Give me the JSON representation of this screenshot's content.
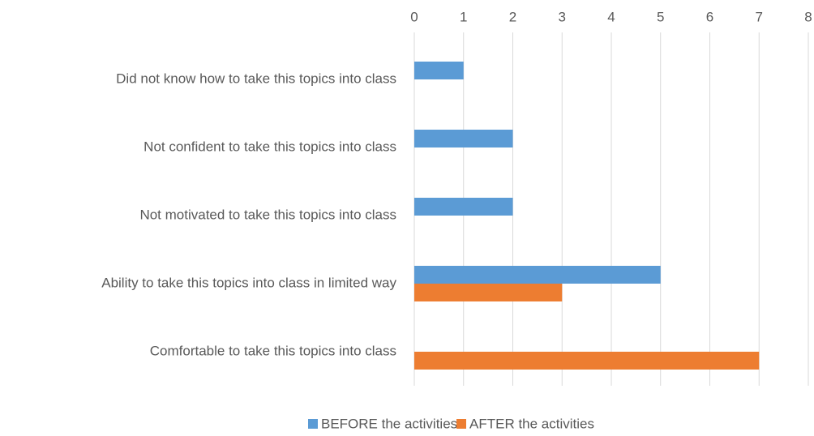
{
  "chart_data": {
    "type": "bar",
    "orientation": "horizontal",
    "categories": [
      "Did not know how to take this topics into class",
      "Not confident to take this topics into class",
      "Not motivated to take this topics into class",
      "Ability to take this topics into class in limited way",
      "Comfortable to take this topics into class"
    ],
    "series": [
      {
        "name": "BEFORE the activities",
        "color": "#5b9bd5",
        "values": [
          1,
          2,
          2,
          5,
          0
        ]
      },
      {
        "name": "AFTER the activities",
        "color": "#ed7d31",
        "values": [
          0,
          0,
          0,
          3,
          7
        ]
      }
    ],
    "xlim": [
      0,
      8
    ],
    "xticks": [
      0,
      1,
      2,
      3,
      4,
      5,
      6,
      7,
      8
    ],
    "grid": true,
    "legend": "bottom"
  }
}
